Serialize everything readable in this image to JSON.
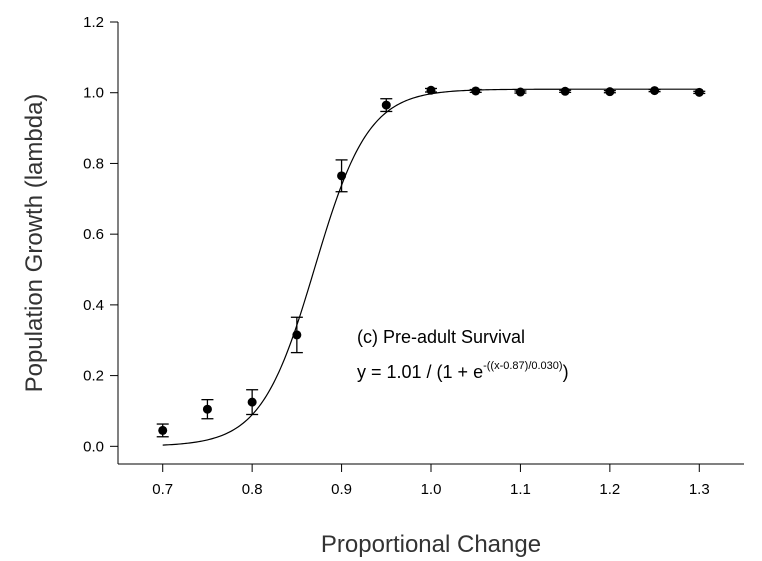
{
  "chart_data": {
    "type": "scatter",
    "xlabel": "Proportional Change",
    "ylabel": "Population Growth (lambda)",
    "xlim": [
      0.65,
      1.35
    ],
    "ylim": [
      -0.05,
      1.2
    ],
    "x_ticks": [
      "0.7",
      "0.8",
      "0.9",
      "1.0",
      "1.1",
      "1.2",
      "1.3"
    ],
    "y_ticks": [
      "0.0",
      "0.2",
      "0.4",
      "0.6",
      "0.8",
      "1.0",
      "1.2"
    ],
    "points": [
      {
        "x": 0.7,
        "y": 0.045,
        "err": 0.018
      },
      {
        "x": 0.75,
        "y": 0.105,
        "err": 0.027
      },
      {
        "x": 0.8,
        "y": 0.125,
        "err": 0.035
      },
      {
        "x": 0.85,
        "y": 0.315,
        "err": 0.05
      },
      {
        "x": 0.9,
        "y": 0.765,
        "err": 0.045
      },
      {
        "x": 0.95,
        "y": 0.965,
        "err": 0.018
      },
      {
        "x": 1.0,
        "y": 1.007,
        "err": 0.005
      },
      {
        "x": 1.05,
        "y": 1.005,
        "err": 0.004
      },
      {
        "x": 1.1,
        "y": 1.002,
        "err": 0.003
      },
      {
        "x": 1.15,
        "y": 1.004,
        "err": 0.003
      },
      {
        "x": 1.2,
        "y": 1.003,
        "err": 0.003
      },
      {
        "x": 1.25,
        "y": 1.006,
        "err": 0.003
      },
      {
        "x": 1.3,
        "y": 1.001,
        "err": 0.003
      }
    ],
    "fit": {
      "a": 1.01,
      "x0": 0.87,
      "b": 0.03,
      "x_range": [
        0.7,
        1.3
      ]
    },
    "annotation": {
      "line1": "(c) Pre-adult Survival",
      "line2_prefix": "y = 1.01 / (1 + e",
      "line2_exponent": "-((x-0.87)/0.030)",
      "line2_suffix": ")"
    },
    "grid": false
  }
}
